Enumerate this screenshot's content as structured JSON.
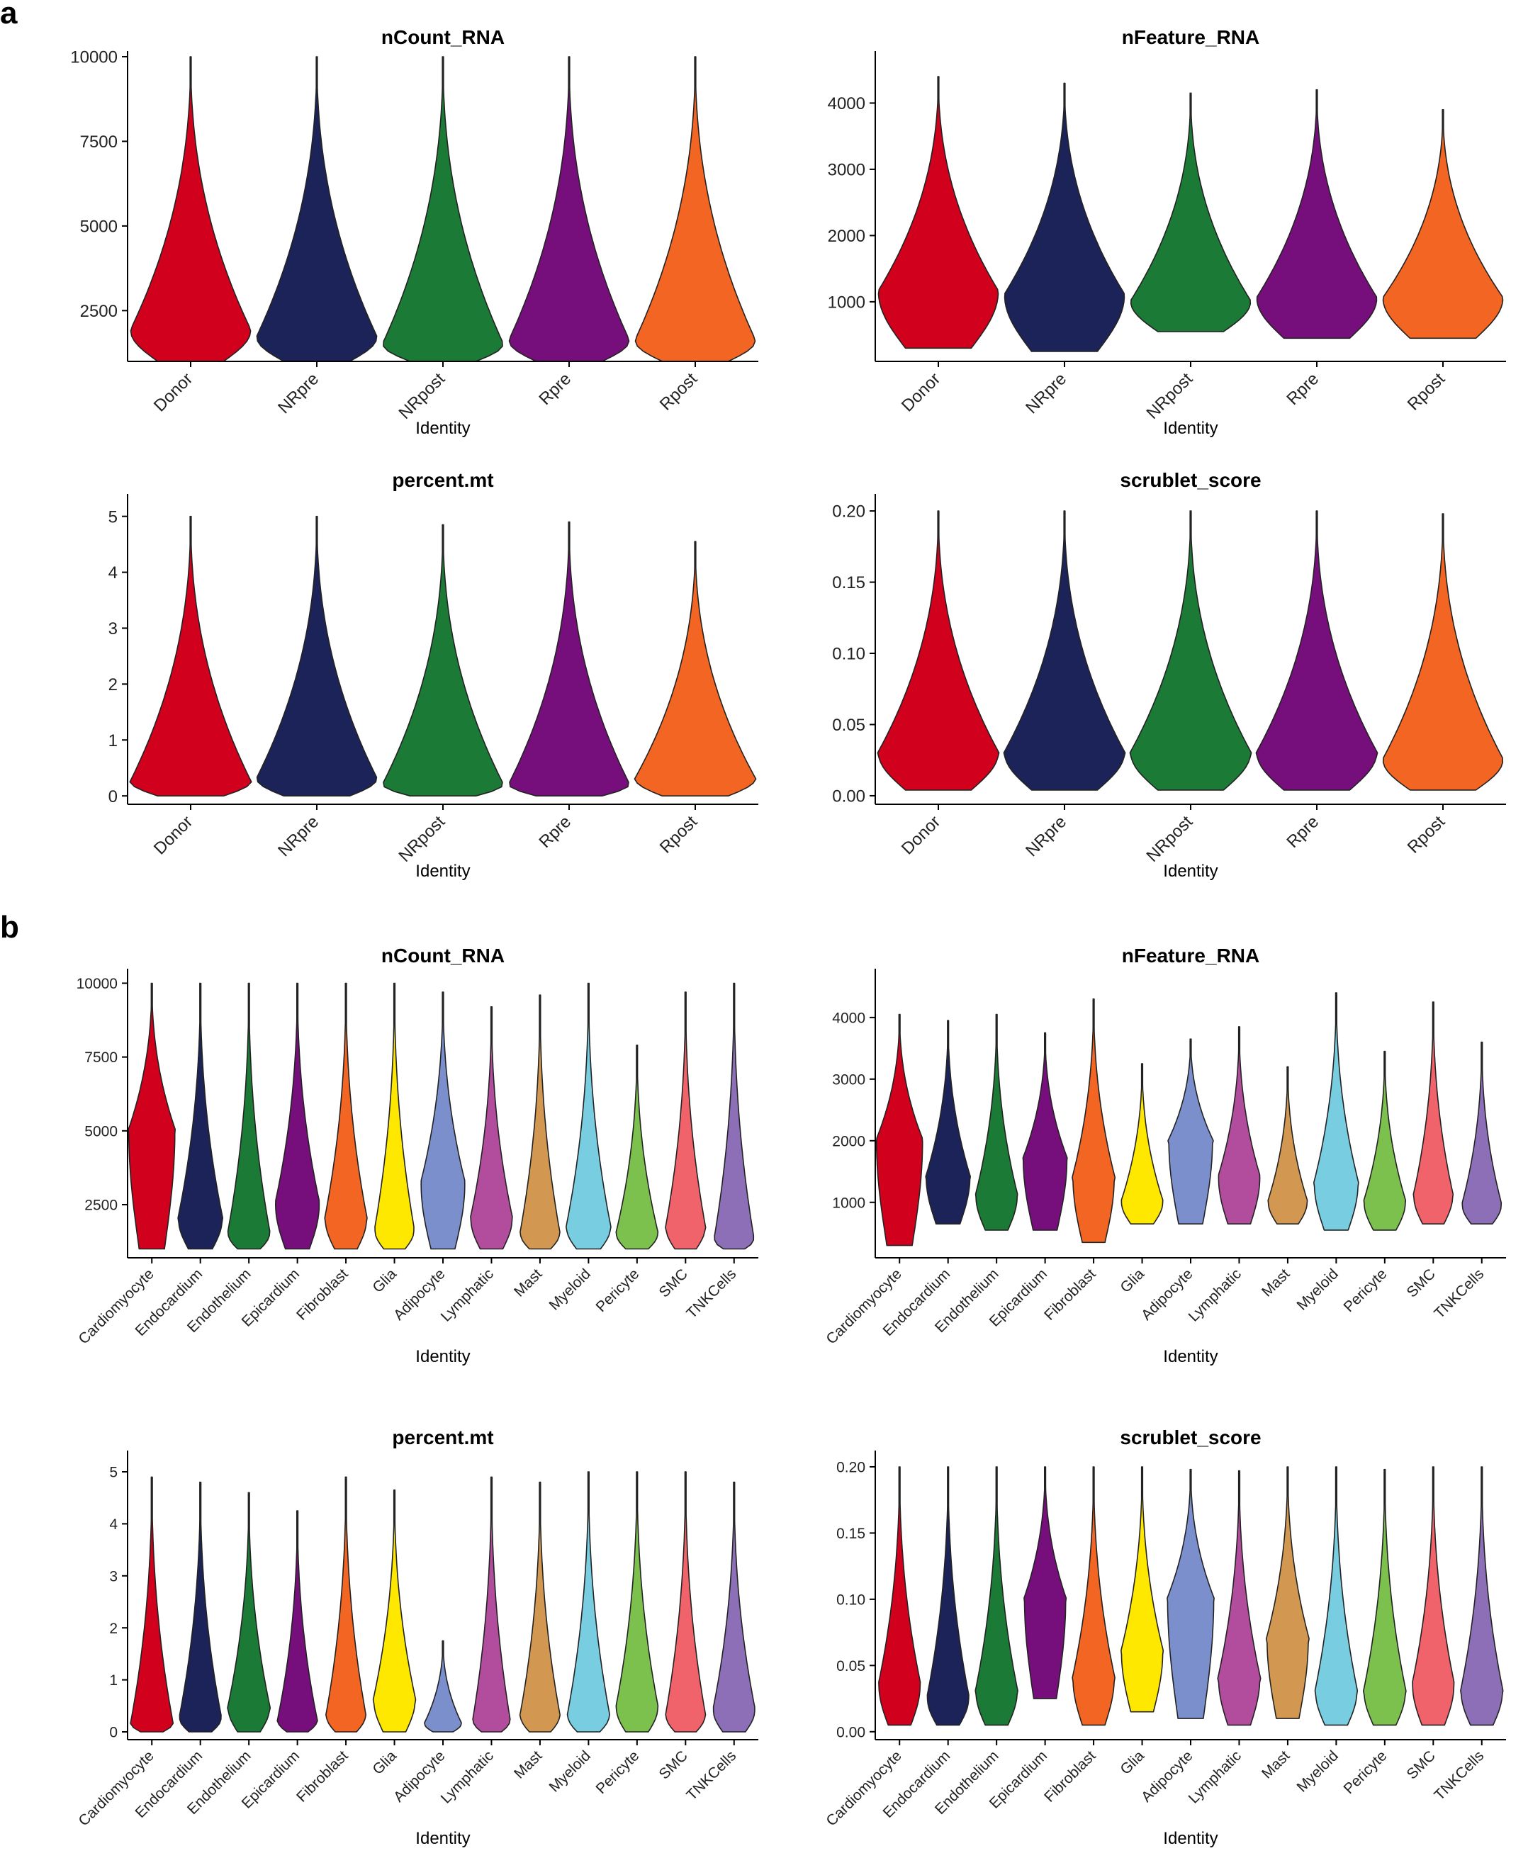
{
  "panel_labels": [
    "a",
    "b"
  ],
  "palettes": {
    "group": [
      "#d1001c",
      "#1b2358",
      "#1b7a35",
      "#760f7c",
      "#f26522"
    ],
    "celltype": [
      "#d1001c",
      "#1b2358",
      "#1b7a35",
      "#760f7c",
      "#f26522",
      "#ffe800",
      "#7a8fcc",
      "#b24c9d",
      "#d29852",
      "#78cde0",
      "#7cc04e",
      "#f0636b",
      "#8c6fb6"
    ]
  },
  "chart_data": [
    {
      "type": "violin",
      "panel": "a",
      "title": "nCount_RNA",
      "xlabel": "Identity",
      "ylabel": "",
      "categories": [
        "Donor",
        "NRpre",
        "NRpost",
        "Rpre",
        "Rpost"
      ],
      "yticks": [
        2500,
        5000,
        7500,
        10000
      ],
      "ytick_labels": [
        "2500",
        "5000",
        "7500",
        "10000"
      ],
      "ylim": [
        1000,
        10000
      ],
      "ranges": [
        [
          1000,
          10000
        ],
        [
          1000,
          10000
        ],
        [
          1000,
          10000
        ],
        [
          1000,
          10000
        ],
        [
          1000,
          10000
        ]
      ],
      "medians": [
        1900,
        1700,
        1500,
        1600,
        1600
      ],
      "half_widths": [
        0.95,
        0.95,
        0.95,
        0.95,
        0.95
      ]
    },
    {
      "type": "violin",
      "panel": "a",
      "title": "nFeature_RNA",
      "xlabel": "Identity",
      "ylabel": "",
      "categories": [
        "Donor",
        "NRpre",
        "NRpost",
        "Rpre",
        "Rpost"
      ],
      "yticks": [
        1000,
        2000,
        3000,
        4000
      ],
      "ytick_labels": [
        "1000",
        "2000",
        "3000",
        "4000"
      ],
      "ylim": [
        100,
        4700
      ],
      "ranges": [
        [
          300,
          4400
        ],
        [
          250,
          4300
        ],
        [
          550,
          4150
        ],
        [
          450,
          4200
        ],
        [
          450,
          3900
        ]
      ],
      "medians": [
        1150,
        1100,
        1000,
        1050,
        1050
      ],
      "half_widths": [
        0.95,
        0.95,
        0.95,
        0.95,
        0.95
      ]
    },
    {
      "type": "violin",
      "panel": "a",
      "title": "percent.mt",
      "xlabel": "Identity",
      "ylabel": "",
      "categories": [
        "Donor",
        "NRpre",
        "NRpost",
        "Rpre",
        "Rpost"
      ],
      "yticks": [
        0,
        1,
        2,
        3,
        4,
        5
      ],
      "ytick_labels": [
        "0",
        "1",
        "2",
        "3",
        "4",
        "5"
      ],
      "ylim": [
        -0.15,
        5.3
      ],
      "ranges": [
        [
          0,
          5
        ],
        [
          0,
          5
        ],
        [
          0,
          4.85
        ],
        [
          0,
          4.9
        ],
        [
          0,
          4.55
        ]
      ],
      "medians": [
        0.25,
        0.3,
        0.2,
        0.2,
        0.3
      ],
      "half_widths": [
        0.95,
        0.95,
        0.95,
        0.95,
        0.95
      ]
    },
    {
      "type": "violin",
      "panel": "a",
      "title": "scrublet_score",
      "xlabel": "Identity",
      "ylabel": "",
      "categories": [
        "Donor",
        "NRpre",
        "NRpost",
        "Rpre",
        "Rpost"
      ],
      "yticks": [
        0,
        0.05,
        0.1,
        0.15,
        0.2
      ],
      "ytick_labels": [
        "0.00",
        "0.05",
        "0.10",
        "0.15",
        "0.20"
      ],
      "ylim": [
        -0.006,
        0.208
      ],
      "ranges": [
        [
          0.004,
          0.2
        ],
        [
          0.004,
          0.2
        ],
        [
          0.004,
          0.2
        ],
        [
          0.004,
          0.2
        ],
        [
          0.004,
          0.198
        ]
      ],
      "medians": [
        0.03,
        0.03,
        0.03,
        0.03,
        0.025
      ],
      "half_widths": [
        0.95,
        0.95,
        0.95,
        0.95,
        0.95
      ]
    },
    {
      "type": "violin",
      "panel": "b",
      "title": "nCount_RNA",
      "xlabel": "Identity",
      "ylabel": "",
      "categories": [
        "Cardiomyocyte",
        "Endocardium",
        "Endothelium",
        "Epicardium",
        "Fibroblast",
        "Glia",
        "Adipocyte",
        "Lymphatic",
        "Mast",
        "Myeloid",
        "Pericyte",
        "SMC",
        "TNKCells"
      ],
      "yticks": [
        2500,
        5000,
        7500,
        10000
      ],
      "ytick_labels": [
        "2500",
        "5000",
        "7500",
        "10000"
      ],
      "ylim": [
        700,
        10300
      ],
      "ranges": [
        [
          1000,
          10000
        ],
        [
          1000,
          10000
        ],
        [
          1000,
          10000
        ],
        [
          1000,
          10000
        ],
        [
          1000,
          10000
        ],
        [
          1000,
          10000
        ],
        [
          1000,
          9700
        ],
        [
          1000,
          9200
        ],
        [
          1000,
          9600
        ],
        [
          1000,
          10000
        ],
        [
          1000,
          7900
        ],
        [
          1000,
          9700
        ],
        [
          1000,
          10000
        ]
      ],
      "medians": [
        5000,
        2000,
        1500,
        2500,
        2000,
        1600,
        3200,
        2000,
        1500,
        1700,
        1500,
        1700,
        1300
      ],
      "half_widths": [
        0.95,
        0.9,
        0.85,
        0.9,
        0.85,
        0.8,
        0.9,
        0.85,
        0.8,
        0.9,
        0.85,
        0.8,
        0.8
      ]
    },
    {
      "type": "violin",
      "panel": "b",
      "title": "nFeature_RNA",
      "xlabel": "Identity",
      "ylabel": "",
      "categories": [
        "Cardiomyocyte",
        "Endocardium",
        "Endothelium",
        "Epicardium",
        "Fibroblast",
        "Glia",
        "Adipocyte",
        "Lymphatic",
        "Mast",
        "Myeloid",
        "Pericyte",
        "SMC",
        "TNKCells"
      ],
      "yticks": [
        1000,
        2000,
        3000,
        4000
      ],
      "ytick_labels": [
        "1000",
        "2000",
        "3000",
        "4000"
      ],
      "ylim": [
        100,
        4700
      ],
      "ranges": [
        [
          300,
          4050
        ],
        [
          650,
          3950
        ],
        [
          550,
          4050
        ],
        [
          550,
          3750
        ],
        [
          350,
          4300
        ],
        [
          650,
          3250
        ],
        [
          650,
          3650
        ],
        [
          650,
          3850
        ],
        [
          650,
          3200
        ],
        [
          550,
          4400
        ],
        [
          550,
          3450
        ],
        [
          650,
          4250
        ],
        [
          650,
          3600
        ]
      ],
      "medians": [
        2000,
        1400,
        1100,
        1700,
        1400,
        1000,
        2000,
        1400,
        1000,
        1300,
        1000,
        1100,
        950
      ],
      "half_widths": [
        0.95,
        0.9,
        0.85,
        0.9,
        0.85,
        0.85,
        0.9,
        0.85,
        0.8,
        0.9,
        0.85,
        0.8,
        0.8
      ]
    },
    {
      "type": "violin",
      "panel": "b",
      "title": "percent.mt",
      "xlabel": "Identity",
      "ylabel": "",
      "categories": [
        "Cardiomyocyte",
        "Endocardium",
        "Endothelium",
        "Epicardium",
        "Fibroblast",
        "Glia",
        "Adipocyte",
        "Lymphatic",
        "Mast",
        "Myeloid",
        "Pericyte",
        "SMC",
        "TNKCells"
      ],
      "yticks": [
        0,
        1,
        2,
        3,
        4,
        5
      ],
      "ytick_labels": [
        "0",
        "1",
        "2",
        "3",
        "4",
        "5"
      ],
      "ylim": [
        -0.15,
        5.3
      ],
      "ranges": [
        [
          0,
          4.9
        ],
        [
          0,
          4.8
        ],
        [
          0,
          4.6
        ],
        [
          0,
          4.25
        ],
        [
          0,
          4.9
        ],
        [
          0,
          4.65
        ],
        [
          0,
          1.75
        ],
        [
          0,
          4.9
        ],
        [
          0,
          4.8
        ],
        [
          0,
          5
        ],
        [
          0,
          5
        ],
        [
          0,
          5
        ],
        [
          0,
          4.8
        ]
      ],
      "medians": [
        0.15,
        0.25,
        0.45,
        0.2,
        0.3,
        0.6,
        0.15,
        0.2,
        0.3,
        0.3,
        0.45,
        0.3,
        0.4
      ],
      "half_widths": [
        0.85,
        0.85,
        0.85,
        0.8,
        0.8,
        0.85,
        0.75,
        0.75,
        0.8,
        0.85,
        0.85,
        0.8,
        0.85
      ]
    },
    {
      "type": "violin",
      "panel": "b",
      "title": "scrublet_score",
      "xlabel": "Identity",
      "ylabel": "",
      "categories": [
        "Cardiomyocyte",
        "Endocardium",
        "Endothelium",
        "Epicardium",
        "Fibroblast",
        "Glia",
        "Adipocyte",
        "Lymphatic",
        "Mast",
        "Myeloid",
        "Pericyte",
        "SMC",
        "TNKCells"
      ],
      "yticks": [
        0,
        0.05,
        0.1,
        0.15,
        0.2
      ],
      "ytick_labels": [
        "0.00",
        "0.05",
        "0.10",
        "0.15",
        "0.20"
      ],
      "ylim": [
        -0.006,
        0.208
      ],
      "ranges": [
        [
          0.005,
          0.2
        ],
        [
          0.005,
          0.2
        ],
        [
          0.005,
          0.2
        ],
        [
          0.025,
          0.2
        ],
        [
          0.005,
          0.2
        ],
        [
          0.015,
          0.2
        ],
        [
          0.01,
          0.198
        ],
        [
          0.005,
          0.197
        ],
        [
          0.01,
          0.2
        ],
        [
          0.005,
          0.2
        ],
        [
          0.005,
          0.198
        ],
        [
          0.005,
          0.2
        ],
        [
          0.005,
          0.2
        ]
      ],
      "medians": [
        0.035,
        0.025,
        0.03,
        0.1,
        0.04,
        0.06,
        0.1,
        0.04,
        0.07,
        0.03,
        0.03,
        0.035,
        0.03
      ],
      "half_widths": [
        0.85,
        0.85,
        0.85,
        0.85,
        0.85,
        0.85,
        0.95,
        0.85,
        0.85,
        0.85,
        0.85,
        0.85,
        0.85
      ]
    }
  ]
}
